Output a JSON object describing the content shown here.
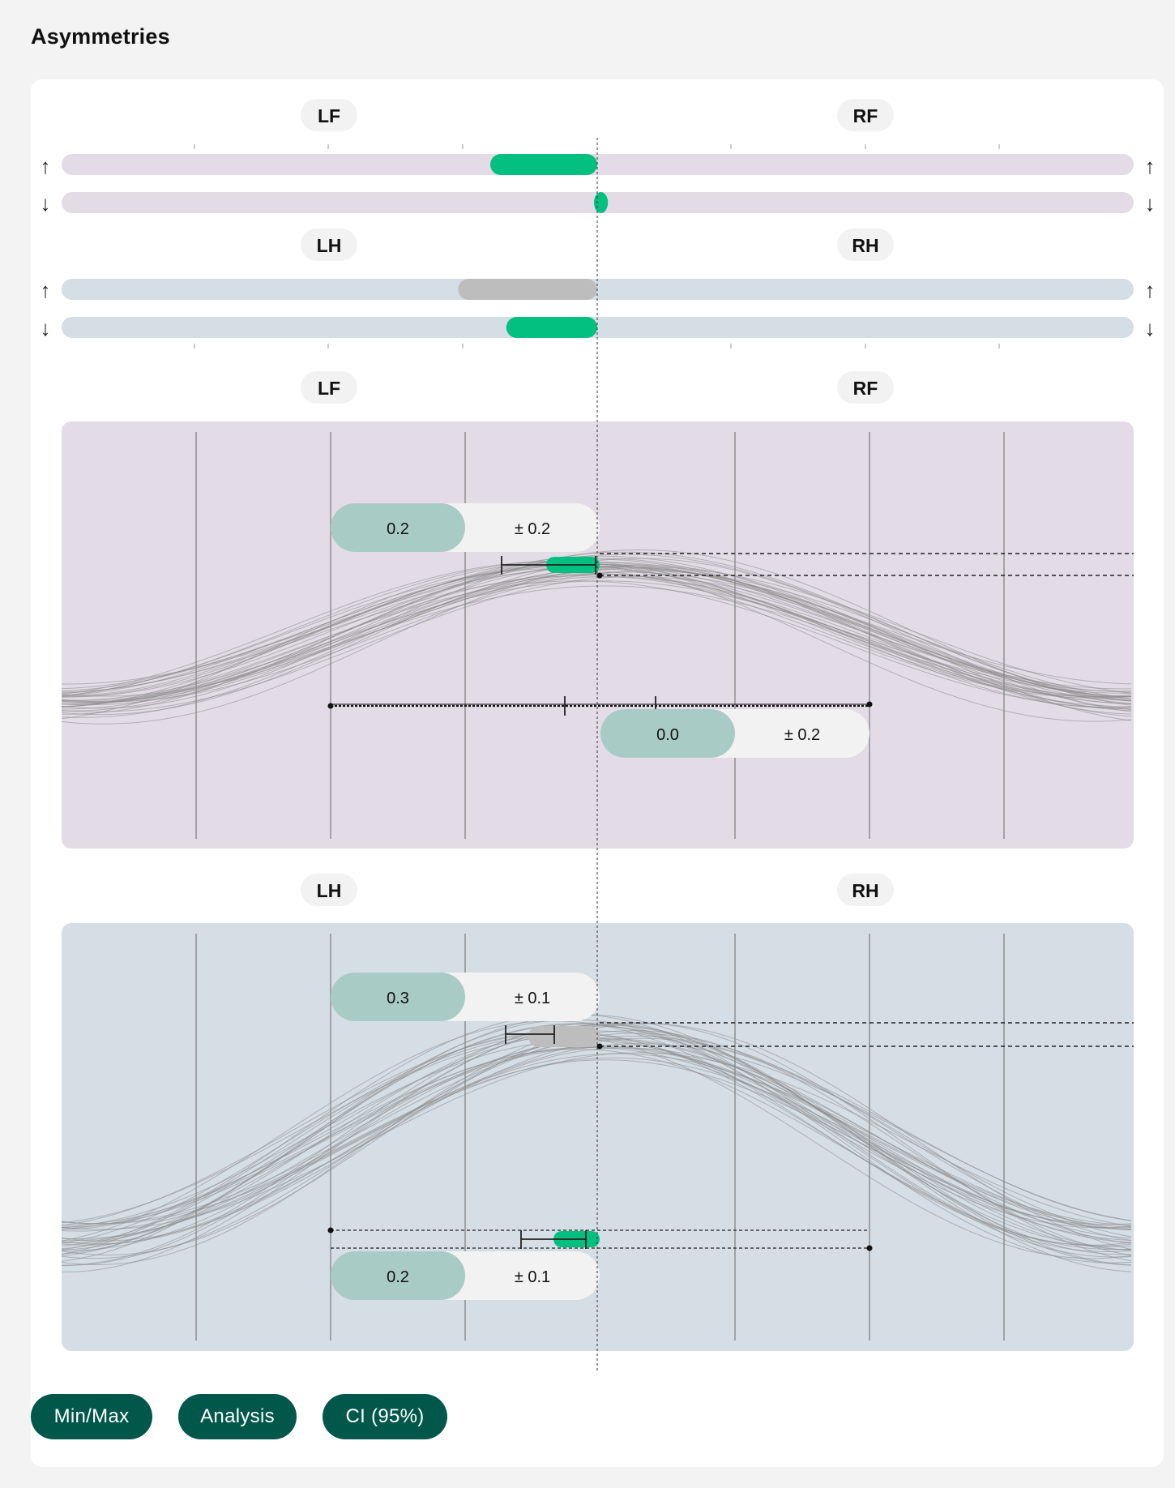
{
  "page": {
    "title": "Asymmetries"
  },
  "legs": {
    "lf": "LF",
    "rf": "RF",
    "lh": "LH",
    "rh": "RH"
  },
  "arrows": {
    "up": "↑",
    "down": "↓"
  },
  "colors": {
    "front_bg": "#e3dce7",
    "hind_bg": "#d5dde5",
    "green": "#03bf80",
    "gray_bar": "#bdbdbd",
    "pill_value_bg": "#a9cbc5",
    "pill_sd_bg": "#f2f2f2",
    "button_bg": "#02574b"
  },
  "summary_bars": {
    "front": {
      "up": {
        "value": -0.2,
        "color": "green"
      },
      "down": {
        "value": 0.02,
        "color": "green"
      }
    },
    "hind": {
      "up": {
        "value": -0.26,
        "color": "gray"
      },
      "down": {
        "value": -0.17,
        "color": "green"
      }
    }
  },
  "front_detail": {
    "max_asymmetry": {
      "value": "0.2",
      "sd": "± 0.2"
    },
    "min_asymmetry": {
      "value": "0.0",
      "sd": "± 0.2"
    }
  },
  "hind_detail": {
    "max_asymmetry": {
      "value": "0.3",
      "sd": "± 0.1"
    },
    "min_asymmetry": {
      "value": "0.2",
      "sd": "± 0.1"
    }
  },
  "toggles": [
    {
      "label": "Min/Max"
    },
    {
      "label": "Analysis"
    },
    {
      "label": "CI (95%)"
    }
  ]
}
